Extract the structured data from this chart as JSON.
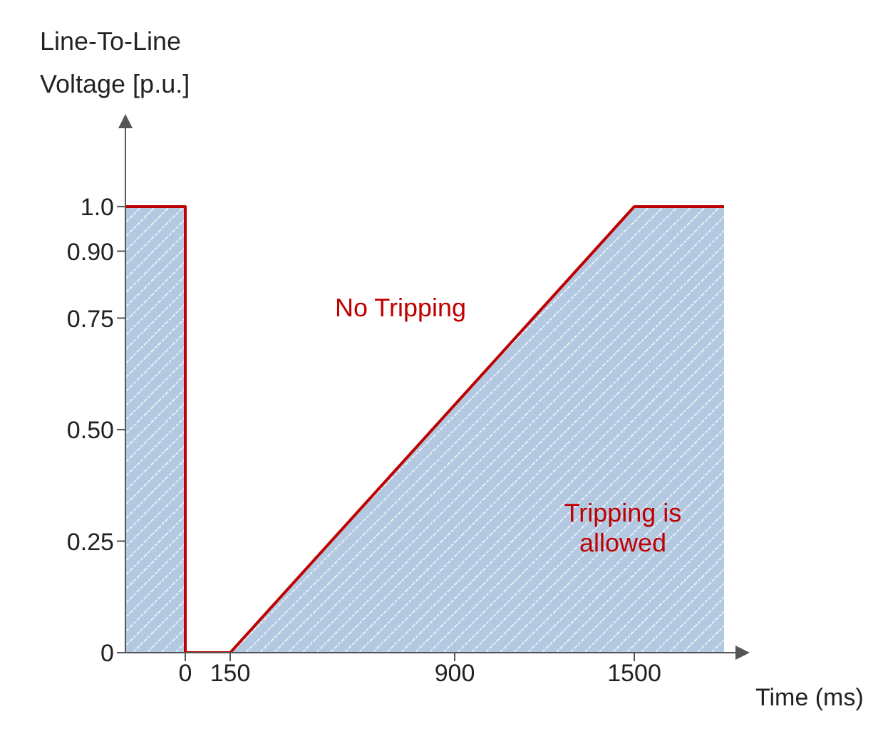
{
  "chart_data": {
    "type": "area",
    "ylabel": "Line-To-Line Voltage [p.u.]",
    "xlabel": "Time (ms)",
    "x": [
      -200,
      0,
      0,
      150,
      1500,
      1800
    ],
    "series": [
      {
        "color": "#c00000",
        "values": [
          1.0,
          1.0,
          0,
          0,
          1.0,
          1.0
        ]
      }
    ],
    "xlim": [
      -200,
      1800
    ],
    "xticks": [
      0,
      150,
      900,
      1500
    ],
    "ylim": [
      0,
      1.15
    ],
    "yticks": [
      0,
      0.25,
      {
        "value": 0.5,
        "label": "0.50"
      },
      0.75,
      {
        "value": 0.9,
        "label": "0.90"
      },
      {
        "value": 1.0,
        "label": "1.0"
      }
    ],
    "annotations": [
      "No Tripping",
      "Tripping is allowed"
    ],
    "grid": false,
    "legend": false
  }
}
